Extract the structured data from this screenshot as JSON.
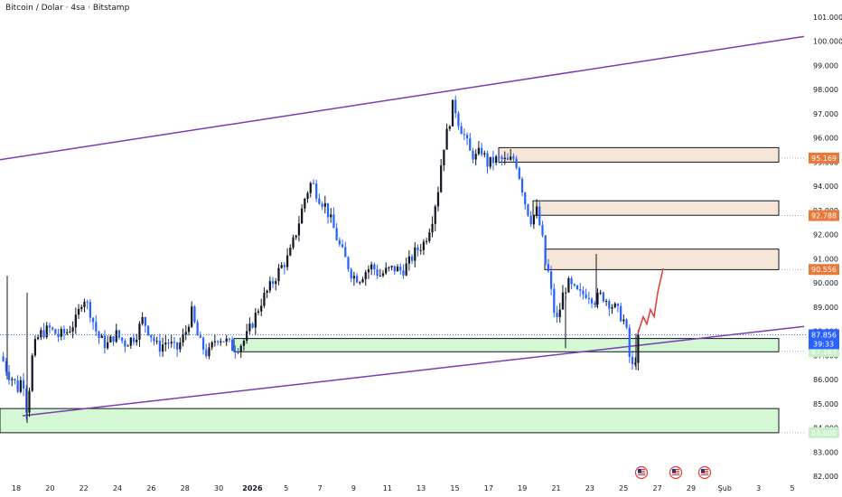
{
  "header": {
    "title": "Bitcoin / Dolar · 4sa · Bitstamp"
  },
  "chart_data": {
    "type": "candlestick",
    "title": "Bitcoin / Dolar · 4sa · Bitstamp",
    "ylim": [
      81800,
      101300
    ],
    "y_ticks": [
      82000,
      83000,
      84000,
      85000,
      86000,
      87000,
      88000,
      89000,
      90000,
      91000,
      92000,
      93000,
      94000,
      95000,
      96000,
      97000,
      98000,
      99000,
      100000,
      101000
    ],
    "y_tick_labels": [
      "82.000",
      "83.000",
      "84.000",
      "85.000",
      "86.000",
      "87.000",
      "88.000",
      "89.000",
      "90.000",
      "91.000",
      "92.000",
      "93.000",
      "94.000",
      "95.000",
      "96.000",
      "97.000",
      "98.000",
      "99.000",
      "100.000",
      "101.000"
    ],
    "x_tick_labels": [
      "18",
      "20",
      "22",
      "24",
      "26",
      "28",
      "30",
      "2026",
      "5",
      "7",
      "9",
      "11",
      "13",
      "15",
      "17",
      "19",
      "21",
      "23",
      "25",
      "27",
      "29",
      "Şub",
      "3",
      "5"
    ],
    "price_path": [
      [
        0,
        87200
      ],
      [
        5,
        86600
      ],
      [
        10,
        86200
      ],
      [
        15,
        86000
      ],
      [
        20,
        85600
      ],
      [
        25,
        86200
      ],
      [
        30,
        84600
      ],
      [
        35,
        86800
      ],
      [
        40,
        87600
      ],
      [
        45,
        87900
      ],
      [
        55,
        88100
      ],
      [
        65,
        87800
      ],
      [
        75,
        88000
      ],
      [
        85,
        88500
      ],
      [
        92,
        89500
      ],
      [
        100,
        88800
      ],
      [
        108,
        87800
      ],
      [
        118,
        87400
      ],
      [
        128,
        87900
      ],
      [
        138,
        87500
      ],
      [
        150,
        87800
      ],
      [
        158,
        88500
      ],
      [
        165,
        88000
      ],
      [
        175,
        87300
      ],
      [
        185,
        87600
      ],
      [
        195,
        87200
      ],
      [
        205,
        87900
      ],
      [
        212,
        88800
      ],
      [
        220,
        87600
      ],
      [
        230,
        87000
      ],
      [
        240,
        87800
      ],
      [
        250,
        87600
      ],
      [
        258,
        87300
      ],
      [
        265,
        87400
      ],
      [
        272,
        87700
      ],
      [
        280,
        88400
      ],
      [
        290,
        89300
      ],
      [
        300,
        89900
      ],
      [
        310,
        90600
      ],
      [
        320,
        91100
      ],
      [
        330,
        92400
      ],
      [
        338,
        93600
      ],
      [
        345,
        94200
      ],
      [
        352,
        93600
      ],
      [
        360,
        93200
      ],
      [
        368,
        92400
      ],
      [
        375,
        91600
      ],
      [
        382,
        91000
      ],
      [
        390,
        90300
      ],
      [
        398,
        90200
      ],
      [
        405,
        90500
      ],
      [
        412,
        90700
      ],
      [
        420,
        90300
      ],
      [
        428,
        90500
      ],
      [
        436,
        90600
      ],
      [
        445,
        90500
      ],
      [
        452,
        90800
      ],
      [
        460,
        91300
      ],
      [
        470,
        91700
      ],
      [
        478,
        92600
      ],
      [
        485,
        93900
      ],
      [
        490,
        95500
      ],
      [
        496,
        96400
      ],
      [
        502,
        97500
      ],
      [
        508,
        96600
      ],
      [
        515,
        96000
      ],
      [
        520,
        95400
      ],
      [
        527,
        95200
      ],
      [
        533,
        95500
      ],
      [
        540,
        94900
      ],
      [
        547,
        95100
      ],
      [
        555,
        95100
      ],
      [
        562,
        95000
      ],
      [
        570,
        95200
      ],
      [
        577,
        94100
      ],
      [
        582,
        93200
      ],
      [
        588,
        92600
      ],
      [
        594,
        93000
      ],
      [
        600,
        91900
      ],
      [
        604,
        90700
      ],
      [
        608,
        90300
      ],
      [
        612,
        89000
      ],
      [
        617,
        88400
      ],
      [
        622,
        89400
      ],
      [
        628,
        90000
      ],
      [
        635,
        89700
      ],
      [
        642,
        89500
      ],
      [
        650,
        89600
      ],
      [
        658,
        89300
      ],
      [
        666,
        89500
      ],
      [
        674,
        89200
      ],
      [
        682,
        88900
      ],
      [
        690,
        88500
      ],
      [
        695,
        87700
      ],
      [
        698,
        86400
      ],
      [
        702,
        86600
      ],
      [
        706,
        87600
      ],
      [
        710,
        87850
      ]
    ],
    "candle_count": 220,
    "highlight_wicks": [
      {
        "x": 30,
        "high": 89600,
        "low": 84200
      },
      {
        "x": 8,
        "high": 90300,
        "low": 86000
      },
      {
        "x": 626,
        "high": 89500,
        "low": 87300
      },
      {
        "x": 660,
        "high": 91200,
        "low": 89000
      },
      {
        "x": 704,
        "high": 87900,
        "low": 86400
      }
    ],
    "channel_lines": [
      {
        "name": "",
        "from": {
          "x": 0,
          "y": 95100
        },
        "to": {
          "x": 890,
          "y": 100200
        },
        "color": "#7e3ab5"
      },
      {
        "name": "",
        "from": {
          "x": 25,
          "y": 84500
        },
        "to": {
          "x": 890,
          "y": 88200
        },
        "color": "#7e3ab5"
      }
    ],
    "zones": [
      {
        "kind": "supply",
        "x0": 552,
        "x1": 862,
        "y0": 95000,
        "y1": 95600,
        "color": "#f5e6d8"
      },
      {
        "kind": "supply",
        "x0": 590,
        "x1": 862,
        "y0": 92800,
        "y1": 93400,
        "color": "#f5e6d8"
      },
      {
        "kind": "supply",
        "x0": 603,
        "x1": 862,
        "y0": 90550,
        "y1": 91400,
        "color": "#f5e6d8"
      },
      {
        "kind": "demand",
        "x0": 259,
        "x1": 862,
        "y0": 87150,
        "y1": 87700,
        "color": "#d4f7d4"
      },
      {
        "kind": "demand",
        "x0": 0,
        "x1": 862,
        "y0": 83800,
        "y1": 84800,
        "color": "#d4f7d4"
      }
    ],
    "projection": [
      [
        706,
        87900
      ],
      [
        712,
        88600
      ],
      [
        716,
        88300
      ],
      [
        720,
        88900
      ],
      [
        724,
        88600
      ],
      [
        728,
        89600
      ],
      [
        734,
        90600
      ]
    ],
    "price_tags": [
      {
        "label": "95.169",
        "value": 95169,
        "color": "#e8793a"
      },
      {
        "label": "92.788",
        "value": 92788,
        "color": "#e8793a"
      },
      {
        "label": "90.556",
        "value": 90556,
        "color": "#e8793a"
      },
      {
        "label": "87.163",
        "value": 87163,
        "color": "#c8f0c8",
        "text_color": "#131722"
      },
      {
        "label": "83.800",
        "value": 83800,
        "color": "#c8f0c8",
        "text_color": "#131722"
      }
    ],
    "last_price": {
      "label": "87.856",
      "value": 87856,
      "countdown": "39:33",
      "color": "#2962ff"
    },
    "event_flags": [
      {
        "x": 710,
        "icon": "us-flag-icon"
      },
      {
        "x": 748,
        "icon": "us-flag-icon"
      },
      {
        "x": 780,
        "icon": "us-flag-icon"
      }
    ]
  }
}
